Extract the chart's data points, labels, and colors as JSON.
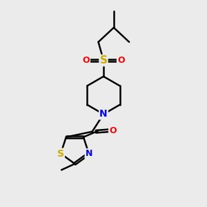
{
  "bg_color": "#ebebeb",
  "bond_color": "#000000",
  "bond_width": 1.8,
  "n_color": "#0000ff",
  "s_color": "#ccaa00",
  "o_color": "#ff0000",
  "figsize": [
    3.0,
    3.0
  ],
  "dpi": 100,
  "xlim": [
    0,
    10
  ],
  "ylim": [
    0,
    10
  ]
}
